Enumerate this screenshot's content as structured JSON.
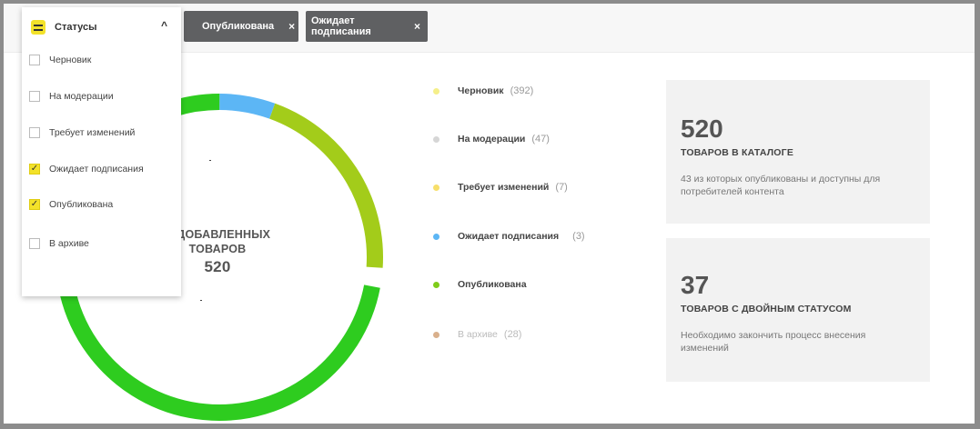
{
  "chips": [
    {
      "label": "Опубликована",
      "close": "×"
    },
    {
      "label": "Ожидает подписания",
      "close": "×"
    }
  ],
  "dropdown": {
    "title": "Статусы",
    "chevron": "^",
    "options": [
      {
        "label": "Черновик",
        "checked": false
      },
      {
        "label": "На модерации",
        "checked": false
      },
      {
        "label": "Требует изменений",
        "checked": false
      },
      {
        "label": "Ожидает подписания",
        "checked": true
      },
      {
        "label": "Опубликована",
        "checked": true
      },
      {
        "label": "В архиве",
        "checked": false
      }
    ]
  },
  "donut": {
    "label_line1": "О ДОБАВЛЕННЫХ",
    "label_line2": "ТОВАРОВ",
    "total": "520",
    "segments_fraction": [
      {
        "name": "green",
        "value": 0.72,
        "color": "#2ecc1f"
      },
      {
        "name": "blue",
        "value": 0.055,
        "color": "#5cb6f5"
      },
      {
        "name": "lime",
        "value": 0.205,
        "color": "#a3cc1a"
      }
    ]
  },
  "legend": [
    {
      "label": "Черновик",
      "count": "(392)",
      "color": "#f5ef8a",
      "faded": false
    },
    {
      "label": "На модерации",
      "count": "(47)",
      "color": "#d6d6d6",
      "faded": false
    },
    {
      "label": "Требует изменений",
      "count": "(7)",
      "color": "#f7df6a",
      "faded": false
    },
    {
      "label": "Ожидает подписания",
      "count": "(3)",
      "color": "#5cb6f5",
      "faded": false
    },
    {
      "label": "Опубликована",
      "count": "",
      "color": "#7fcc1a",
      "faded": false
    },
    {
      "label": "В архиве",
      "count": "(28)",
      "color": "#d9b08c",
      "faded": true
    }
  ],
  "cards": [
    {
      "big": "520",
      "title": "ТОВАРОВ В КАТАЛОГЕ",
      "desc": "43 из которых опубликованы и доступны для потребителей контента"
    },
    {
      "big": "37",
      "title": "ТОВАРОВ С ДВОЙНЫМ СТАТУСОМ",
      "desc": "Необходимо закончить процесс внесения изменений"
    }
  ]
}
